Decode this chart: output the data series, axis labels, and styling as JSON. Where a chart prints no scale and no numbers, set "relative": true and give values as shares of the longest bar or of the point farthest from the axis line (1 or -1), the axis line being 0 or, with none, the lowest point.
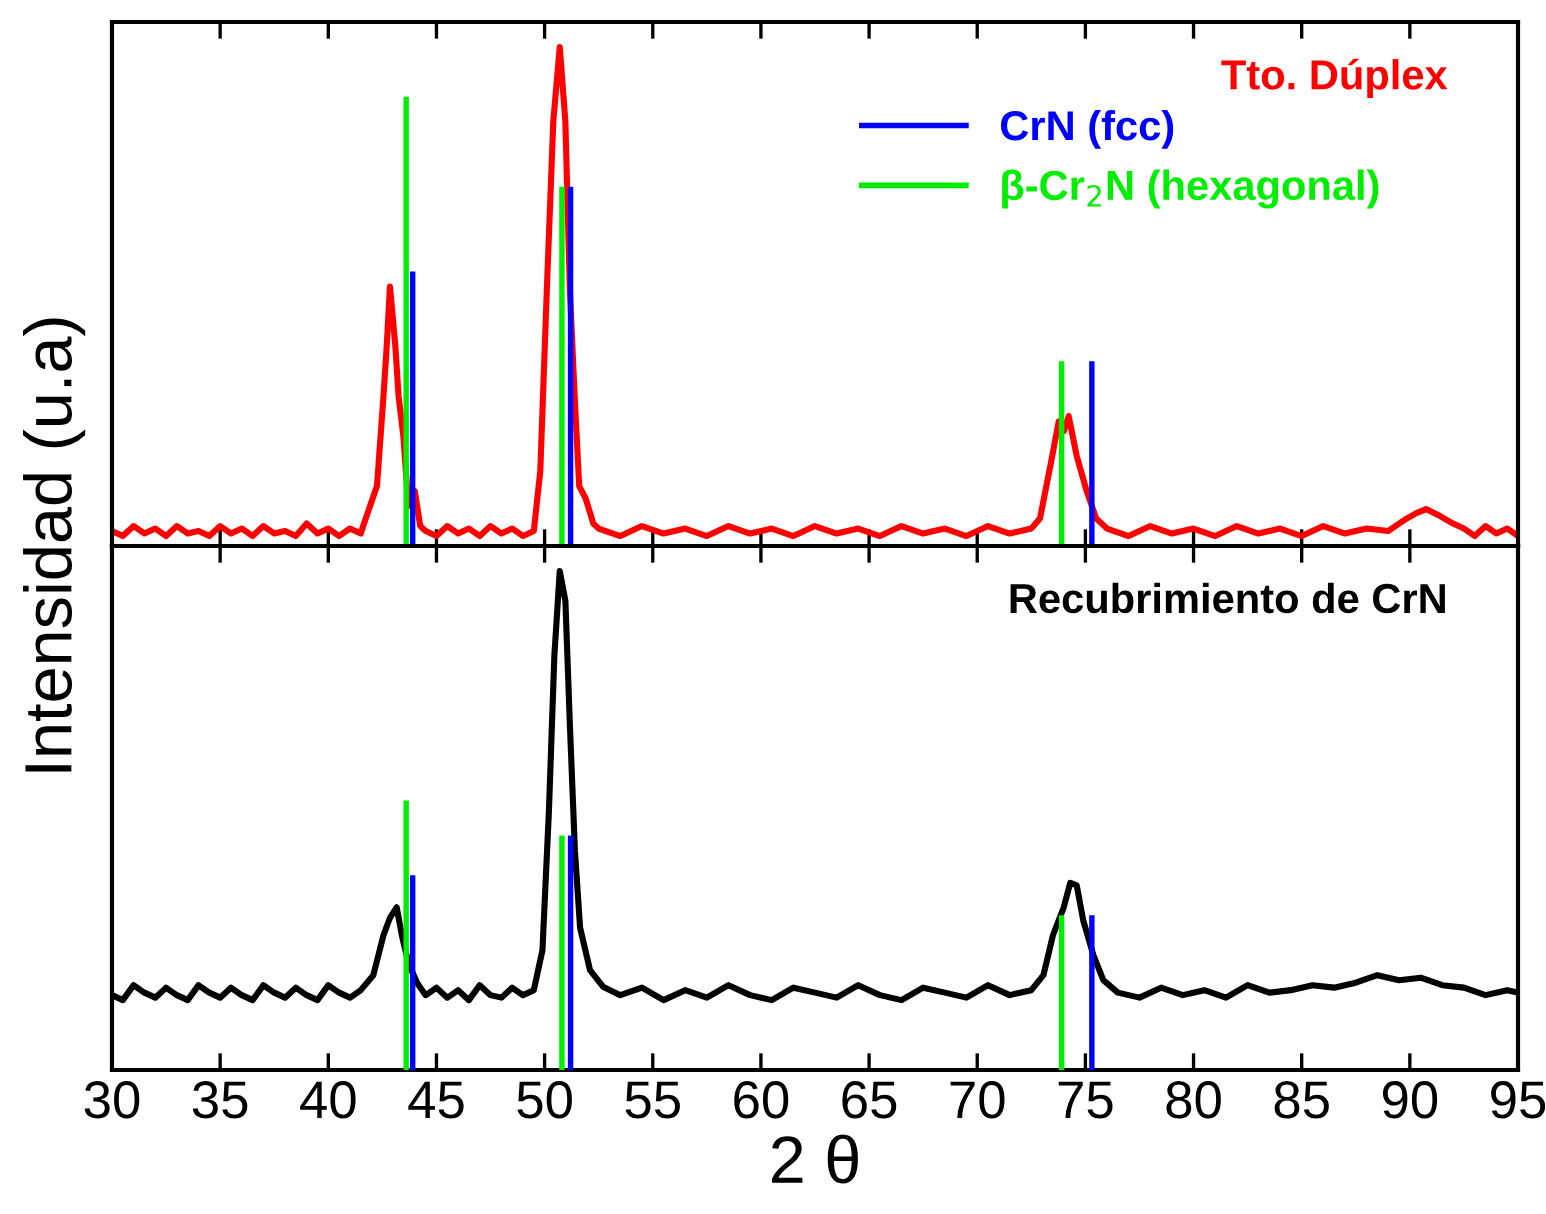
{
  "chart_data": [
    {
      "type": "line",
      "relative": true,
      "ylabel": "Intensidad (u.a)",
      "xlim": [
        30,
        95
      ],
      "xticks": [
        30,
        35,
        40,
        45,
        50,
        55,
        60,
        65,
        70,
        75,
        80,
        85,
        90,
        95
      ],
      "tick_labels": false,
      "legend": "top right",
      "grid": false,
      "annotations": [
        "Tto. Dúplex"
      ],
      "series": [
        {
          "color": "#ff0000",
          "x": [
            30,
            30.5,
            31,
            31.5,
            32,
            32.5,
            33,
            33.5,
            34,
            34.5,
            35,
            35.5,
            36,
            36.5,
            37,
            37.5,
            38,
            38.5,
            39,
            39.5,
            40,
            40.5,
            41,
            41.5,
            41.65,
            42.25,
            42.55,
            42.7,
            42.85,
            43.1,
            43.25,
            43.47,
            43.7,
            44.0,
            44.25,
            44.5,
            45,
            45.5,
            46,
            46.5,
            47,
            47.5,
            48,
            48.5,
            49,
            49.5,
            49.8,
            50.1,
            50.4,
            50.7,
            50.96,
            51.17,
            51.4,
            51.6,
            51.9,
            52.25,
            52.5,
            53.5,
            54.5,
            55.5,
            56.5,
            57.5,
            58.5,
            59.5,
            60.5,
            61.5,
            62.5,
            63.5,
            64.5,
            65.5,
            66.5,
            67.5,
            68.5,
            69.5,
            70.5,
            71.5,
            72.5,
            72.9,
            73.4,
            73.77,
            74.0,
            74.23,
            74.6,
            75.06,
            75.5,
            76,
            77,
            78,
            79,
            80,
            81,
            82,
            83,
            84,
            85,
            86,
            87,
            88,
            89,
            89.85,
            90.3,
            90.75,
            91.4,
            92.0,
            92.5,
            93,
            93.5,
            94,
            94.5,
            95
          ],
          "values": [
            0.03,
            0.02,
            0.04,
            0.025,
            0.035,
            0.02,
            0.04,
            0.025,
            0.03,
            0.02,
            0.04,
            0.025,
            0.035,
            0.02,
            0.04,
            0.025,
            0.03,
            0.02,
            0.045,
            0.025,
            0.035,
            0.02,
            0.035,
            0.025,
            0.045,
            0.12,
            0.3,
            0.4,
            0.52,
            0.4,
            0.3,
            0.22,
            0.08,
            0.11,
            0.04,
            0.03,
            0.02,
            0.04,
            0.025,
            0.035,
            0.02,
            0.04,
            0.025,
            0.035,
            0.02,
            0.03,
            0.15,
            0.51,
            0.85,
            1.0,
            0.85,
            0.51,
            0.29,
            0.12,
            0.095,
            0.045,
            0.035,
            0.02,
            0.04,
            0.025,
            0.035,
            0.02,
            0.04,
            0.025,
            0.035,
            0.02,
            0.04,
            0.025,
            0.035,
            0.02,
            0.04,
            0.025,
            0.035,
            0.02,
            0.04,
            0.025,
            0.035,
            0.055,
            0.165,
            0.25,
            0.23,
            0.26,
            0.18,
            0.11,
            0.055,
            0.035,
            0.02,
            0.04,
            0.025,
            0.035,
            0.02,
            0.04,
            0.025,
            0.035,
            0.02,
            0.04,
            0.025,
            0.035,
            0.03,
            0.055,
            0.066,
            0.074,
            0.06,
            0.045,
            0.035,
            0.02,
            0.04,
            0.025,
            0.035,
            0.02
          ]
        },
        {
          "type": "bar",
          "name": "CrN (fcc)",
          "color": "#0000ff",
          "x": [
            43.9,
            51.2,
            75.3
          ],
          "values": [
            0.55,
            0.72,
            0.37
          ]
        },
        {
          "type": "bar",
          "name": "β-Cr$_{2}$N (hexagonal)",
          "color": "#00ee00",
          "x": [
            43.6,
            50.8,
            73.9
          ],
          "values": [
            0.9,
            0.72,
            0.37
          ]
        }
      ]
    },
    {
      "type": "line",
      "relative": true,
      "xlabel": "2 θ",
      "xlim": [
        30,
        95
      ],
      "xticks": [
        30,
        35,
        40,
        45,
        50,
        55,
        60,
        65,
        70,
        75,
        80,
        85,
        90,
        95
      ],
      "tick_labels": "x",
      "grid": false,
      "annotations": [
        "Recubrimiento de CrN"
      ],
      "series": [
        {
          "color": "#000000",
          "x": [
            30,
            30.5,
            31,
            31.5,
            32,
            32.5,
            33,
            33.5,
            34,
            34.5,
            35,
            35.5,
            36,
            36.5,
            37,
            37.5,
            38,
            38.5,
            39,
            39.5,
            40,
            40.5,
            41,
            41.5,
            42.08,
            42.55,
            42.85,
            43.16,
            43.4,
            43.7,
            44.1,
            44.5,
            45,
            45.5,
            46,
            46.5,
            47,
            47.5,
            48,
            48.5,
            49,
            49.5,
            49.9,
            50.2,
            50.45,
            50.7,
            50.96,
            51.17,
            51.4,
            51.64,
            52.1,
            52.7,
            53.5,
            54.5,
            55.5,
            56.5,
            57.5,
            58.5,
            59.5,
            60.5,
            61.5,
            62.5,
            63.5,
            64.5,
            65.5,
            66.5,
            67.5,
            68.5,
            69.5,
            70.5,
            71.5,
            72.5,
            73.06,
            73.5,
            74.0,
            74.3,
            74.6,
            74.9,
            75.37,
            75.83,
            76.5,
            77.5,
            78.5,
            79.5,
            80.5,
            81.5,
            82.5,
            83.5,
            84.5,
            85.5,
            86.5,
            87.5,
            88.5,
            89.5,
            90.5,
            91.5,
            92.5,
            93.5,
            94.5,
            95
          ],
          "values": [
            0.15,
            0.14,
            0.17,
            0.155,
            0.145,
            0.165,
            0.15,
            0.14,
            0.17,
            0.155,
            0.145,
            0.165,
            0.15,
            0.14,
            0.17,
            0.155,
            0.145,
            0.165,
            0.15,
            0.14,
            0.17,
            0.155,
            0.145,
            0.16,
            0.19,
            0.27,
            0.305,
            0.326,
            0.27,
            0.215,
            0.175,
            0.15,
            0.165,
            0.145,
            0.16,
            0.14,
            0.17,
            0.15,
            0.145,
            0.165,
            0.15,
            0.16,
            0.24,
            0.52,
            0.83,
            1.0,
            0.94,
            0.69,
            0.44,
            0.285,
            0.2,
            0.167,
            0.15,
            0.165,
            0.14,
            0.16,
            0.145,
            0.17,
            0.15,
            0.14,
            0.165,
            0.155,
            0.145,
            0.17,
            0.15,
            0.14,
            0.165,
            0.155,
            0.145,
            0.17,
            0.15,
            0.16,
            0.19,
            0.27,
            0.326,
            0.375,
            0.37,
            0.3,
            0.23,
            0.18,
            0.155,
            0.145,
            0.165,
            0.15,
            0.16,
            0.145,
            0.17,
            0.155,
            0.16,
            0.17,
            0.165,
            0.175,
            0.19,
            0.18,
            0.185,
            0.17,
            0.165,
            0.15,
            0.16,
            0.155
          ]
        },
        {
          "type": "bar",
          "color": "#0000ff",
          "x": [
            43.9,
            51.2,
            75.3
          ],
          "values": [
            0.39,
            0.47,
            0.31
          ]
        },
        {
          "type": "bar",
          "color": "#00ee00",
          "x": [
            43.6,
            50.8,
            73.9
          ],
          "values": [
            0.54,
            0.47,
            0.31
          ]
        }
      ]
    }
  ]
}
